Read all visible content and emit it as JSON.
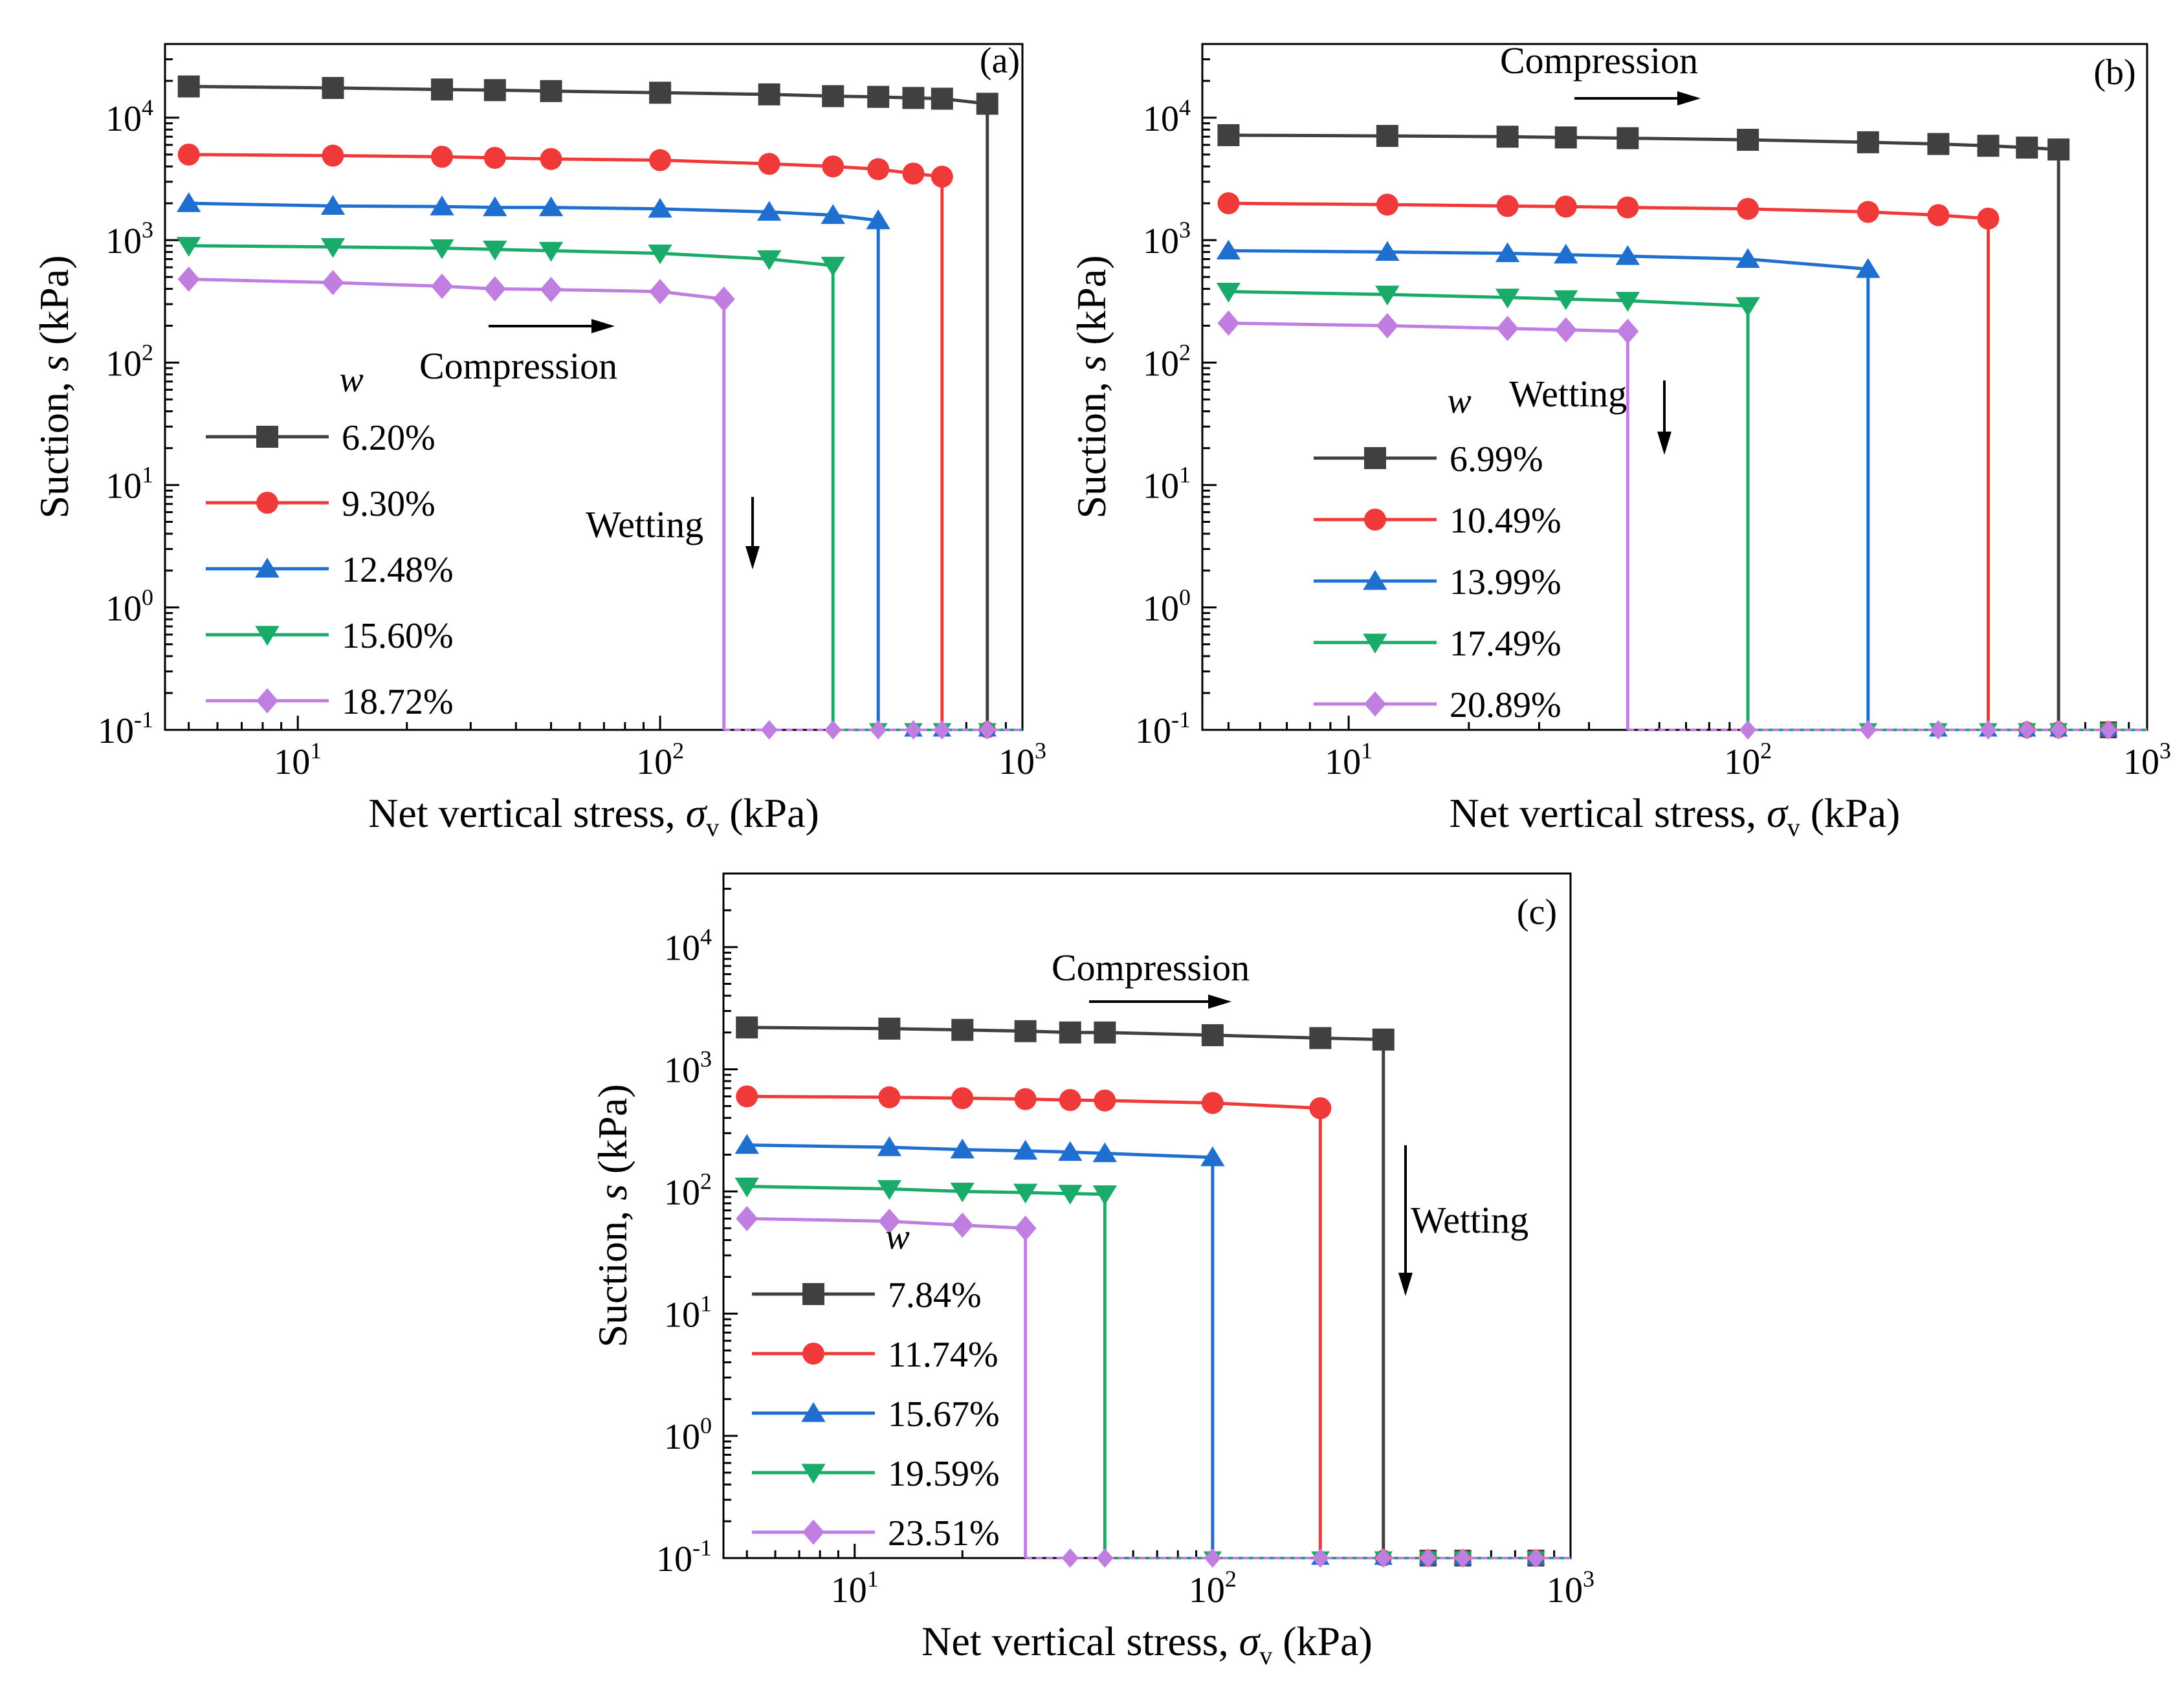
{
  "chart_data": [
    {
      "panel": "(a)",
      "type": "line",
      "xlabel": "Net vertical stress, σv (kPa)",
      "ylabel": "Suction, s (kPa)",
      "xscale": "log",
      "yscale": "log",
      "xlim": [
        4.3,
        1000
      ],
      "ylim": [
        0.1,
        40000
      ],
      "xticks": [
        {
          "base": "10",
          "exp": "1"
        },
        {
          "base": "10",
          "exp": "2"
        },
        {
          "base": "10",
          "exp": "3"
        }
      ],
      "yticks": [
        {
          "base": "10",
          "exp": "-1"
        },
        {
          "base": "10",
          "exp": "0"
        },
        {
          "base": "10",
          "exp": "1"
        },
        {
          "base": "10",
          "exp": "2"
        },
        {
          "base": "10",
          "exp": "3"
        },
        {
          "base": "10",
          "exp": "4"
        }
      ],
      "legend_title": "w",
      "legend_position": "lower-left",
      "annotations": [
        "Compression",
        "Wetting"
      ],
      "series": [
        {
          "name": "6.20%",
          "color": "#404040",
          "marker": "square",
          "x": [
            5,
            12.5,
            25,
            35,
            50,
            100,
            200,
            300,
            400,
            500,
            600,
            800
          ],
          "y": [
            18000,
            17500,
            17000,
            16800,
            16500,
            16000,
            15500,
            15000,
            14800,
            14500,
            14300,
            13000
          ],
          "wetting_x": 800,
          "wetting_to": 0.1,
          "after_x": [
            800,
            1000
          ],
          "after_y": [
            0.1,
            0.1
          ]
        },
        {
          "name": "9.30%",
          "color": "#f03a3a",
          "marker": "circle",
          "x": [
            5,
            12.5,
            25,
            35,
            50,
            100,
            200,
            300,
            400,
            500,
            600
          ],
          "y": [
            5000,
            4900,
            4800,
            4700,
            4600,
            4500,
            4200,
            4000,
            3800,
            3500,
            3300
          ],
          "wetting_x": 600,
          "wetting_to": 0.1,
          "after_x": [
            600,
            800,
            1000
          ],
          "after_y": [
            0.1,
            0.1,
            0.1
          ]
        },
        {
          "name": "12.48%",
          "color": "#1f6fd1",
          "marker": "triangle-up",
          "x": [
            5,
            12.5,
            25,
            35,
            50,
            100,
            200,
            300,
            400
          ],
          "y": [
            2000,
            1900,
            1880,
            1850,
            1850,
            1800,
            1700,
            1600,
            1450
          ],
          "wetting_x": 400,
          "wetting_to": 0.1,
          "after_x": [
            400,
            500,
            600,
            800,
            1000
          ],
          "after_y": [
            0.1,
            0.1,
            0.1,
            0.1,
            0.1
          ]
        },
        {
          "name": "15.60%",
          "color": "#1aaa6a",
          "marker": "triangle-down",
          "x": [
            5,
            12.5,
            25,
            35,
            50,
            100,
            200,
            300
          ],
          "y": [
            900,
            880,
            860,
            840,
            820,
            780,
            700,
            620
          ],
          "wetting_x": 300,
          "wetting_to": 0.1,
          "after_x": [
            300,
            400,
            500,
            600,
            800,
            1000
          ],
          "after_y": [
            0.1,
            0.1,
            0.1,
            0.1,
            0.1,
            0.1
          ]
        },
        {
          "name": "18.72%",
          "color": "#c07ee0",
          "marker": "diamond",
          "x": [
            5,
            12.5,
            25,
            35,
            50,
            100,
            150
          ],
          "y": [
            480,
            450,
            420,
            400,
            395,
            380,
            330
          ],
          "wetting_x": 150,
          "wetting_to": 0.1,
          "after_x": [
            150,
            200,
            300,
            400,
            500,
            600,
            800,
            1000
          ],
          "after_y": [
            0.1,
            0.1,
            0.1,
            0.1,
            0.1,
            0.1,
            0.1,
            0.1
          ]
        }
      ]
    },
    {
      "panel": "(b)",
      "type": "line",
      "xlabel": "Net vertical stress, σv (kPa)",
      "ylabel": "Suction, s (kPa)",
      "xscale": "log",
      "yscale": "log",
      "xlim": [
        4.3,
        1000
      ],
      "ylim": [
        0.1,
        40000
      ],
      "xticks": [
        {
          "base": "10",
          "exp": "1"
        },
        {
          "base": "10",
          "exp": "2"
        },
        {
          "base": "10",
          "exp": "3"
        }
      ],
      "yticks": [
        {
          "base": "10",
          "exp": "-1"
        },
        {
          "base": "10",
          "exp": "0"
        },
        {
          "base": "10",
          "exp": "1"
        },
        {
          "base": "10",
          "exp": "2"
        },
        {
          "base": "10",
          "exp": "3"
        },
        {
          "base": "10",
          "exp": "4"
        }
      ],
      "legend_title": "w",
      "legend_position": "lower-left",
      "annotations": [
        "Compression",
        "Wetting"
      ],
      "series": [
        {
          "name": "6.99%",
          "color": "#404040",
          "marker": "square",
          "x": [
            5,
            12.5,
            25,
            35,
            50,
            100,
            200,
            300,
            400,
            500,
            600
          ],
          "y": [
            7200,
            7100,
            7000,
            6900,
            6800,
            6600,
            6300,
            6100,
            5900,
            5700,
            5500
          ],
          "wetting_x": 600,
          "wetting_to": 0.1,
          "after_x": [
            600,
            800,
            1000
          ],
          "after_y": [
            0.1,
            0.1,
            0.1
          ]
        },
        {
          "name": "10.49%",
          "color": "#f03a3a",
          "marker": "circle",
          "x": [
            5,
            12.5,
            25,
            35,
            50,
            100,
            200,
            300,
            400
          ],
          "y": [
            2000,
            1950,
            1900,
            1880,
            1850,
            1800,
            1700,
            1600,
            1500
          ],
          "wetting_x": 400,
          "wetting_to": 0.1,
          "after_x": [
            400,
            500,
            600,
            800,
            1000
          ],
          "after_y": [
            0.1,
            0.1,
            0.1,
            0.1,
            0.1
          ]
        },
        {
          "name": "13.99%",
          "color": "#1f6fd1",
          "marker": "triangle-up",
          "x": [
            5,
            12.5,
            25,
            35,
            50,
            100,
            200
          ],
          "y": [
            820,
            800,
            780,
            760,
            740,
            700,
            580
          ],
          "wetting_x": 200,
          "wetting_to": 0.1,
          "after_x": [
            200,
            300,
            400,
            500,
            600,
            800,
            1000
          ],
          "after_y": [
            0.1,
            0.1,
            0.1,
            0.1,
            0.1,
            0.1,
            0.1
          ]
        },
        {
          "name": "17.49%",
          "color": "#1aaa6a",
          "marker": "triangle-down",
          "x": [
            5,
            12.5,
            25,
            35,
            50,
            100
          ],
          "y": [
            380,
            360,
            340,
            330,
            320,
            290
          ],
          "wetting_x": 100,
          "wetting_to": 0.1,
          "after_x": [
            100,
            200,
            300,
            400,
            500,
            600,
            800,
            1000
          ],
          "after_y": [
            0.1,
            0.1,
            0.1,
            0.1,
            0.1,
            0.1,
            0.1,
            0.1
          ]
        },
        {
          "name": "20.89%",
          "color": "#c07ee0",
          "marker": "diamond",
          "x": [
            5,
            12.5,
            25,
            35,
            50
          ],
          "y": [
            210,
            200,
            190,
            185,
            180
          ],
          "wetting_x": 50,
          "wetting_to": 0.1,
          "after_x": [
            50,
            100,
            200,
            300,
            400,
            500,
            600,
            800,
            1000
          ],
          "after_y": [
            0.1,
            0.1,
            0.1,
            0.1,
            0.1,
            0.1,
            0.1,
            0.1,
            0.1
          ]
        }
      ]
    },
    {
      "panel": "(c)",
      "type": "line",
      "xlabel": "Net vertical stress, σv (kPa)",
      "ylabel": "Suction, s (kPa)",
      "xscale": "log",
      "yscale": "log",
      "xlim": [
        4.3,
        1000
      ],
      "ylim": [
        0.1,
        40000
      ],
      "xticks": [
        {
          "base": "10",
          "exp": "1"
        },
        {
          "base": "10",
          "exp": "2"
        },
        {
          "base": "10",
          "exp": "3"
        }
      ],
      "yticks": [
        {
          "base": "10",
          "exp": "-1"
        },
        {
          "base": "10",
          "exp": "0"
        },
        {
          "base": "10",
          "exp": "1"
        },
        {
          "base": "10",
          "exp": "2"
        },
        {
          "base": "10",
          "exp": "3"
        },
        {
          "base": "10",
          "exp": "4"
        }
      ],
      "legend_title": "w",
      "legend_position": "lower-left",
      "annotations": [
        "Compression",
        "Wetting"
      ],
      "series": [
        {
          "name": "7.84%",
          "color": "#404040",
          "marker": "square",
          "x": [
            5,
            12.5,
            20,
            30,
            40,
            50,
            100,
            200,
            300
          ],
          "y": [
            2200,
            2150,
            2100,
            2050,
            2000,
            2000,
            1900,
            1800,
            1750
          ],
          "wetting_x": 300,
          "wetting_to": 0.1,
          "after_x": [
            300,
            400,
            500,
            800,
            1000
          ],
          "after_y": [
            0.1,
            0.1,
            0.1,
            0.1,
            0.1
          ]
        },
        {
          "name": "11.74%",
          "color": "#f03a3a",
          "marker": "circle",
          "x": [
            5,
            12.5,
            20,
            30,
            40,
            50,
            100,
            200
          ],
          "y": [
            600,
            590,
            580,
            570,
            560,
            555,
            530,
            480
          ],
          "wetting_x": 200,
          "wetting_to": 0.1,
          "after_x": [
            200,
            300,
            400,
            500,
            800,
            1000
          ],
          "after_y": [
            0.1,
            0.1,
            0.1,
            0.1,
            0.1,
            0.1
          ]
        },
        {
          "name": "15.67%",
          "color": "#1f6fd1",
          "marker": "triangle-up",
          "x": [
            5,
            12.5,
            20,
            30,
            40,
            50,
            100
          ],
          "y": [
            240,
            230,
            220,
            215,
            210,
            205,
            190
          ],
          "wetting_x": 100,
          "wetting_to": 0.1,
          "after_x": [
            100,
            200,
            300,
            400,
            500,
            800,
            1000
          ],
          "after_y": [
            0.1,
            0.1,
            0.1,
            0.1,
            0.1,
            0.1,
            0.1
          ]
        },
        {
          "name": "19.59%",
          "color": "#1aaa6a",
          "marker": "triangle-down",
          "x": [
            5,
            12.5,
            20,
            30,
            40,
            50
          ],
          "y": [
            110,
            105,
            100,
            98,
            96,
            95
          ],
          "wetting_x": 50,
          "wetting_to": 0.1,
          "after_x": [
            50,
            100,
            200,
            300,
            400,
            500,
            800,
            1000
          ],
          "after_y": [
            0.1,
            0.1,
            0.1,
            0.1,
            0.1,
            0.1,
            0.1,
            0.1
          ]
        },
        {
          "name": "23.51%",
          "color": "#c07ee0",
          "marker": "diamond",
          "x": [
            5,
            12.5,
            20,
            30
          ],
          "y": [
            60,
            57,
            53,
            50
          ],
          "wetting_x": 30,
          "wetting_to": 0.1,
          "after_x": [
            30,
            40,
            50,
            100,
            200,
            300,
            400,
            500,
            800,
            1000
          ],
          "after_y": [
            0.1,
            0.1,
            0.1,
            0.1,
            0.1,
            0.1,
            0.1,
            0.1,
            0.1,
            0.1
          ]
        }
      ]
    }
  ]
}
